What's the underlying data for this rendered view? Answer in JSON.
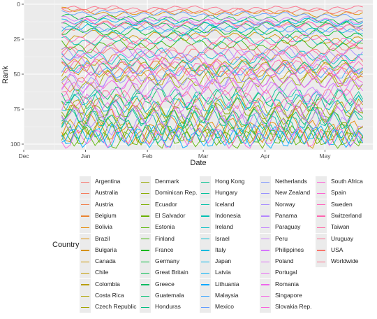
{
  "chart_data": {
    "type": "line",
    "title": "",
    "xlabel": "Date",
    "ylabel": "Rank",
    "x_ticks": [
      "Dec",
      "Jan",
      "Feb",
      "Mar",
      "Apr",
      "May"
    ],
    "y_ticks": [
      "0",
      "25",
      "50",
      "75",
      "100"
    ],
    "ylim": [
      104,
      -3
    ],
    "y_reversed": true,
    "xlim": [
      "2016-12-01",
      "2017-05-25"
    ],
    "grid": true,
    "legend_title": "Country",
    "legend_position": "bottom",
    "series": [
      {
        "name": "Argentina",
        "color": "#F8766D",
        "values": [
          35,
          30,
          34,
          28,
          32,
          36,
          30,
          29,
          33,
          31,
          35,
          30,
          32
        ]
      },
      {
        "name": "Australia",
        "color": "#F57A5A",
        "values": [
          22,
          12,
          14,
          16,
          13,
          15,
          12,
          14,
          13,
          15,
          14,
          16,
          17
        ]
      },
      {
        "name": "Austria",
        "color": "#F07E48",
        "values": [
          60,
          55,
          48,
          52,
          50,
          47,
          53,
          49,
          51,
          46,
          50,
          48,
          52
        ]
      },
      {
        "name": "Belgium",
        "color": "#EA8331",
        "values": [
          40,
          45,
          38,
          42,
          44,
          39,
          43,
          41,
          38,
          40,
          42,
          39,
          41
        ]
      },
      {
        "name": "Bolivia",
        "color": "#E48800",
        "values": [
          90,
          85,
          80,
          95,
          88,
          82,
          90,
          86,
          93,
          84,
          89,
          92,
          87
        ]
      },
      {
        "name": "Brazil",
        "color": "#DD8D00",
        "values": [
          3,
          5,
          8,
          6,
          7,
          5,
          6,
          7,
          5,
          6,
          8,
          7,
          6
        ]
      },
      {
        "name": "Bulgaria",
        "color": "#D59200",
        "values": [
          95,
          88,
          92,
          97,
          90,
          94,
          89,
          96,
          91,
          93,
          98,
          90,
          95
        ]
      },
      {
        "name": "Canada",
        "color": "#CC9600",
        "values": [
          30,
          20,
          22,
          25,
          21,
          24,
          20,
          23,
          22,
          26,
          24,
          27,
          25
        ]
      },
      {
        "name": "Chile",
        "color": "#C39A00",
        "values": [
          50,
          45,
          52,
          47,
          55,
          49,
          46,
          53,
          48,
          51,
          50,
          54,
          49
        ]
      },
      {
        "name": "Colombia",
        "color": "#B99E00",
        "values": [
          45,
          40,
          43,
          46,
          41,
          44,
          47,
          42,
          45,
          43,
          46,
          44,
          48
        ]
      },
      {
        "name": "Costa Rica",
        "color": "#AEA200",
        "values": [
          70,
          75,
          68,
          72,
          78,
          70,
          74,
          69,
          73,
          77,
          71,
          75,
          72
        ]
      },
      {
        "name": "Czech Republic",
        "color": "#A3A500",
        "values": [
          80,
          72,
          85,
          76,
          82,
          79,
          74,
          84,
          77,
          81,
          75,
          83,
          78
        ]
      },
      {
        "name": "Denmark",
        "color": "#97A900",
        "values": [
          55,
          60,
          50,
          58,
          53,
          57,
          51,
          59,
          54,
          56,
          52,
          55,
          57
        ]
      },
      {
        "name": "Dominican Rep.",
        "color": "#8BAB00",
        "values": [
          85,
          90,
          82,
          88,
          84,
          91,
          86,
          83,
          89,
          87,
          85,
          90,
          88
        ]
      },
      {
        "name": "Ecuador",
        "color": "#7CAE00",
        "values": [
          75,
          80,
          73,
          78,
          74,
          81,
          77,
          72,
          79,
          76,
          80,
          74,
          78
        ]
      },
      {
        "name": "El Salvador",
        "color": "#6BB100",
        "values": [
          92,
          96,
          90,
          94,
          98,
          91,
          95,
          93,
          97,
          92,
          96,
          94,
          99
        ]
      },
      {
        "name": "Estonia",
        "color": "#56B500",
        "values": [
          98,
          93,
          99,
          95,
          91,
          97,
          94,
          99,
          92,
          96,
          93,
          98,
          95
        ]
      },
      {
        "name": "Finland",
        "color": "#39B600",
        "values": [
          28,
          33,
          27,
          31,
          29,
          26,
          30,
          28,
          32,
          27,
          29,
          31,
          28
        ]
      },
      {
        "name": "France",
        "color": "#00B81F",
        "values": [
          20,
          18,
          21,
          19,
          22,
          20,
          18,
          21,
          19,
          22,
          20,
          21,
          23
        ]
      },
      {
        "name": "Germany",
        "color": "#00BA38",
        "values": [
          8,
          10,
          9,
          11,
          10,
          12,
          9,
          11,
          10,
          12,
          11,
          13,
          12
        ]
      },
      {
        "name": "Great Britain",
        "color": "#00BB4E",
        "values": [
          15,
          14,
          16,
          13,
          15,
          17,
          14,
          16,
          15,
          13,
          16,
          14,
          15
        ]
      },
      {
        "name": "Greece",
        "color": "#00BC61",
        "values": [
          65,
          70,
          62,
          68,
          64,
          71,
          66,
          63,
          69,
          67,
          72,
          65,
          70
        ]
      },
      {
        "name": "Guatemala",
        "color": "#00BE71",
        "values": [
          78,
          83,
          76,
          81,
          79,
          84,
          77,
          82,
          80,
          85,
          78,
          83,
          81
        ]
      },
      {
        "name": "Honduras",
        "color": "#00BF82",
        "values": [
          88,
          92,
          86,
          90,
          94,
          87,
          91,
          89,
          93,
          88,
          92,
          90,
          94
        ]
      },
      {
        "name": "Hong Kong",
        "color": "#00C08E",
        "values": [
          42,
          48,
          44,
          40,
          46,
          43,
          49,
          45,
          41,
          47,
          44,
          42,
          46
        ]
      },
      {
        "name": "Hungary",
        "color": "#00C19A",
        "values": [
          68,
          63,
          71,
          66,
          60,
          69,
          64,
          72,
          67,
          62,
          70,
          65,
          68
        ]
      },
      {
        "name": "Iceland",
        "color": "#00C1A7",
        "values": [
          82,
          78,
          85,
          80,
          87,
          81,
          79,
          86,
          83,
          88,
          80,
          84,
          82
        ]
      },
      {
        "name": "Indonesia",
        "color": "#00C0B4",
        "values": [
          25,
          28,
          24,
          27,
          26,
          23,
          28,
          25,
          27,
          24,
          26,
          28,
          25
        ]
      },
      {
        "name": "Ireland",
        "color": "#00BFC4",
        "values": [
          38,
          35,
          40,
          37,
          34,
          39,
          36,
          41,
          38,
          35,
          37,
          40,
          36
        ]
      },
      {
        "name": "Israel",
        "color": "#00BDD0",
        "values": [
          72,
          67,
          74,
          70,
          76,
          69,
          73,
          68,
          75,
          71,
          66,
          74,
          70
        ]
      },
      {
        "name": "Italy",
        "color": "#00BADE",
        "values": [
          18,
          16,
          20,
          17,
          19,
          21,
          16,
          18,
          20,
          17,
          19,
          18,
          21
        ]
      },
      {
        "name": "Japan",
        "color": "#00B6EB",
        "values": [
          12,
          13,
          11,
          14,
          12,
          13,
          15,
          12,
          14,
          13,
          11,
          14,
          13
        ]
      },
      {
        "name": "Latvia",
        "color": "#00B0F6",
        "values": [
          96,
          91,
          98,
          94,
          99,
          92,
          97,
          93,
          98,
          95,
          91,
          97,
          94
        ]
      },
      {
        "name": "Lithuania",
        "color": "#00A9FF",
        "values": [
          93,
          97,
          91,
          95,
          92,
          98,
          94,
          96,
          90,
          97,
          93,
          95,
          99
        ]
      },
      {
        "name": "Malaysia",
        "color": "#35A2FF",
        "values": [
          48,
          44,
          50,
          46,
          52,
          45,
          49,
          47,
          51,
          44,
          48,
          50,
          46
        ]
      },
      {
        "name": "Mexico",
        "color": "#619CFF",
        "values": [
          6,
          7,
          5,
          8,
          6,
          7,
          9,
          6,
          8,
          7,
          9,
          8,
          10
        ]
      },
      {
        "name": "Netherlands",
        "color": "#7C96FF",
        "values": [
          16,
          19,
          17,
          15,
          18,
          16,
          19,
          17,
          15,
          18,
          20,
          17,
          19
        ]
      },
      {
        "name": "New Zealand",
        "color": "#9590FF",
        "values": [
          52,
          57,
          54,
          50,
          56,
          53,
          58,
          51,
          55,
          52,
          57,
          54,
          50
        ]
      },
      {
        "name": "Norway",
        "color": "#A58AFF",
        "values": [
          33,
          38,
          31,
          36,
          34,
          39,
          32,
          37,
          35,
          33,
          38,
          36,
          34
        ]
      },
      {
        "name": "Panama",
        "color": "#B385FF",
        "values": [
          86,
          81,
          88,
          84,
          90,
          83,
          87,
          85,
          82,
          89,
          84,
          86,
          88
        ]
      },
      {
        "name": "Paraguay",
        "color": "#C17FFF",
        "values": [
          77,
          82,
          74,
          79,
          83,
          76,
          80,
          78,
          84,
          75,
          81,
          79,
          77
        ]
      },
      {
        "name": "Peru",
        "color": "#CB7AFF",
        "values": [
          58,
          62,
          55,
          60,
          57,
          63,
          59,
          56,
          61,
          58,
          64,
          60,
          57
        ]
      },
      {
        "name": "Philippines",
        "color": "#D675FD",
        "values": [
          10,
          11,
          9,
          12,
          10,
          11,
          13,
          10,
          12,
          11,
          10,
          13,
          12
        ]
      },
      {
        "name": "Poland",
        "color": "#DF70F8",
        "values": [
          36,
          41,
          38,
          34,
          40,
          37,
          42,
          35,
          39,
          36,
          41,
          38,
          40
        ]
      },
      {
        "name": "Portugal",
        "color": "#E76BF3",
        "values": [
          62,
          58,
          65,
          60,
          66,
          61,
          57,
          64,
          59,
          63,
          67,
          60,
          62
        ]
      },
      {
        "name": "Romania",
        "color": "#EE67EB",
        "values": [
          74,
          69,
          77,
          72,
          68,
          75,
          71,
          78,
          70,
          73,
          76,
          71,
          74
        ]
      },
      {
        "name": "Singapore",
        "color": "#F464E3",
        "values": [
          44,
          49,
          42,
          47,
          45,
          50,
          43,
          48,
          46,
          44,
          49,
          47,
          45
        ]
      },
      {
        "name": "Slovakia Rep.",
        "color": "#F962DD",
        "values": [
          99,
          94,
          97,
          92,
          98,
          95,
          93,
          99,
          96,
          91,
          97,
          94,
          98
        ]
      },
      {
        "name": "South Africa",
        "color": "#FB61D7",
        "values": [
          56,
          51,
          59,
          54,
          50,
          58,
          53,
          60,
          55,
          52,
          57,
          54,
          56
        ]
      },
      {
        "name": "Spain",
        "color": "#FD61D1",
        "values": [
          14,
          12,
          15,
          13,
          16,
          14,
          12,
          15,
          13,
          16,
          14,
          17,
          15
        ]
      },
      {
        "name": "Sweden",
        "color": "#FF62BC",
        "values": [
          24,
          26,
          23,
          27,
          25,
          22,
          26,
          24,
          28,
          25,
          23,
          27,
          26
        ]
      },
      {
        "name": "Switzerland",
        "color": "#FF64B0",
        "values": [
          46,
          42,
          48,
          44,
          41,
          47,
          43,
          49,
          45,
          42,
          46,
          48,
          44
        ]
      },
      {
        "name": "Taiwan",
        "color": "#FF67A4",
        "values": [
          32,
          36,
          30,
          34,
          38,
          31,
          35,
          33,
          37,
          32,
          36,
          34,
          31
        ]
      },
      {
        "name": "Uruguay",
        "color": "#FF6C91",
        "values": [
          66,
          71,
          64,
          69,
          73,
          67,
          62,
          70,
          65,
          72,
          68,
          63,
          69
        ]
      },
      {
        "name": "USA",
        "color": "#F8766D",
        "values": [
          4,
          5,
          3,
          6,
          4,
          5,
          7,
          4,
          6,
          5,
          4,
          6,
          5
        ]
      },
      {
        "name": "Worldwide",
        "color": "#FE6E8A",
        "values": [
          2,
          3,
          2,
          4,
          3,
          2,
          3,
          4,
          3,
          2,
          4,
          3,
          2
        ]
      }
    ]
  }
}
